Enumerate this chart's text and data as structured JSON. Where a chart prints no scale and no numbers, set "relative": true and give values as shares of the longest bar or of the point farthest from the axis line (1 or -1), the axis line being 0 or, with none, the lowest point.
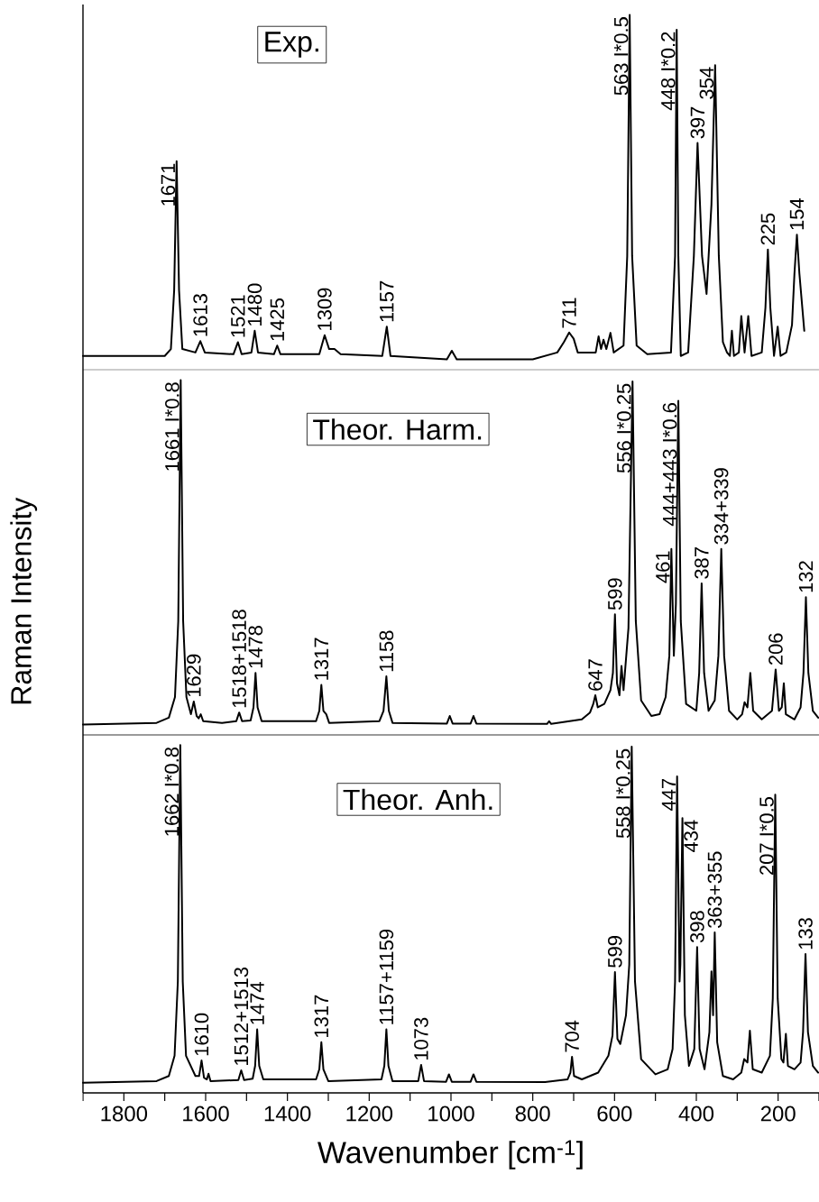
{
  "chart_data": [
    {
      "type": "line",
      "title": "Exp.",
      "relative": true,
      "xlim": [
        1900,
        100
      ],
      "tick_labels": false,
      "color": "#000000",
      "x": [
        1900,
        1700,
        1685,
        1677,
        1671,
        1665,
        1657,
        1625,
        1613,
        1602,
        1532,
        1521,
        1512,
        1488,
        1480,
        1472,
        1433,
        1425,
        1417,
        1322,
        1309,
        1298,
        1285,
        1270,
        1168,
        1157,
        1148,
        1010,
        998,
        986,
        800,
        740,
        724,
        711,
        700,
        690,
        646,
        639,
        633,
        627,
        620,
        610,
        602,
        578,
        569,
        563,
        557,
        546,
        520,
        462,
        452,
        448,
        444,
        438,
        420,
        406,
        397,
        386,
        375,
        363,
        354,
        345,
        335,
        325,
        318,
        313,
        308,
        296,
        290,
        282,
        273,
        265,
        240,
        231,
        225,
        219,
        210,
        201,
        194,
        180,
        166,
        160,
        154,
        148,
        136
      ],
      "values": [
        0.01,
        0.01,
        0.03,
        0.2,
        0.575,
        0.2,
        0.03,
        0.02,
        0.053,
        0.02,
        0.015,
        0.05,
        0.015,
        0.02,
        0.083,
        0.02,
        0.015,
        0.04,
        0.015,
        0.015,
        0.07,
        0.03,
        0.03,
        0.015,
        0.01,
        0.095,
        0.01,
        0.0,
        0.025,
        0.0,
        0.0,
        0.02,
        0.05,
        0.078,
        0.06,
        0.02,
        0.02,
        0.067,
        0.03,
        0.057,
        0.03,
        0.077,
        0.02,
        0.04,
        0.3,
        1.0,
        0.3,
        0.04,
        0.015,
        0.02,
        0.3,
        0.957,
        0.3,
        0.01,
        0.02,
        0.3,
        0.628,
        0.3,
        0.19,
        0.45,
        0.854,
        0.3,
        0.05,
        0.02,
        0.01,
        0.083,
        0.01,
        0.02,
        0.126,
        0.02,
        0.126,
        0.01,
        0.02,
        0.15,
        0.319,
        0.15,
        0.01,
        0.095,
        0.01,
        0.02,
        0.1,
        0.25,
        0.362,
        0.25,
        0.083
      ],
      "annotations": [
        {
          "text": "1671",
          "x": 1671,
          "y": 0.575
        },
        {
          "text": "1613",
          "x": 1613,
          "y": 0.053
        },
        {
          "text": "1521",
          "x": 1521,
          "y": 0.05
        },
        {
          "text": "1480",
          "x": 1480,
          "y": 0.083
        },
        {
          "text": "1425",
          "x": 1425,
          "y": 0.04
        },
        {
          "text": "1309",
          "x": 1309,
          "y": 0.07
        },
        {
          "text": "1157",
          "x": 1157,
          "y": 0.095
        },
        {
          "text": "711",
          "x": 711,
          "y": 0.078
        },
        {
          "text": "563 I*0.5",
          "x": 563,
          "y": 1.0
        },
        {
          "text": "448 I*0.2",
          "x": 448,
          "y": 0.957
        },
        {
          "text": "397",
          "x": 397,
          "y": 0.628
        },
        {
          "text": "354",
          "x": 354,
          "y": 0.854
        },
        {
          "text": "225",
          "x": 225,
          "y": 0.319
        },
        {
          "text": "154",
          "x": 154,
          "y": 0.362
        }
      ]
    },
    {
      "type": "line",
      "title": "Theor. Harm.",
      "relative": true,
      "xlim": [
        1900,
        100
      ],
      "tick_labels": false,
      "ylabel": "Raman Intensity",
      "color": "#000000",
      "x": [
        1900,
        1720,
        1690,
        1675,
        1667,
        1661,
        1655,
        1647,
        1636,
        1629,
        1622,
        1617,
        1612,
        1606,
        1560,
        1525,
        1518,
        1511,
        1490,
        1483,
        1478,
        1473,
        1463,
        1330,
        1322,
        1317,
        1312,
        1305,
        1298,
        1175,
        1165,
        1158,
        1152,
        1143,
        1010,
        1003,
        996,
        952,
        945,
        938,
        765,
        760,
        755,
        680,
        660,
        652,
        647,
        641,
        625,
        610,
        604,
        599,
        594,
        588,
        583,
        578,
        566,
        556,
        548,
        535,
        510,
        490,
        475,
        466,
        461,
        455,
        450,
        444,
        438,
        425,
        400,
        393,
        387,
        381,
        370,
        355,
        346,
        339,
        332,
        320,
        300,
        288,
        282,
        275,
        268,
        261,
        240,
        215,
        206,
        198,
        191,
        186,
        181,
        160,
        145,
        138,
        132,
        126,
        115,
        102
      ],
      "values": [
        0.0,
        0.005,
        0.02,
        0.08,
        0.3,
        1.0,
        0.3,
        0.08,
        0.03,
        0.067,
        0.025,
        0.018,
        0.03,
        0.01,
        0.005,
        0.01,
        0.035,
        0.01,
        0.012,
        0.05,
        0.15,
        0.05,
        0.01,
        0.01,
        0.04,
        0.115,
        0.04,
        0.03,
        0.005,
        0.01,
        0.04,
        0.14,
        0.04,
        0.005,
        0.003,
        0.025,
        0.003,
        0.003,
        0.025,
        0.003,
        0.002,
        0.01,
        0.002,
        0.015,
        0.035,
        0.06,
        0.085,
        0.05,
        0.06,
        0.1,
        0.15,
        0.32,
        0.12,
        0.085,
        0.17,
        0.1,
        0.28,
        0.996,
        0.3,
        0.07,
        0.025,
        0.03,
        0.08,
        0.2,
        0.51,
        0.2,
        0.35,
        0.94,
        0.3,
        0.06,
        0.04,
        0.15,
        0.41,
        0.15,
        0.04,
        0.07,
        0.2,
        0.51,
        0.2,
        0.04,
        0.015,
        0.03,
        0.065,
        0.05,
        0.15,
        0.04,
        0.015,
        0.04,
        0.16,
        0.04,
        0.05,
        0.12,
        0.03,
        0.015,
        0.05,
        0.15,
        0.37,
        0.15,
        0.04,
        0.02
      ],
      "annotations": [
        {
          "text": "1661 I*0.8",
          "x": 1661,
          "y": 1.0
        },
        {
          "text": "1629",
          "x": 1629,
          "y": 0.067
        },
        {
          "text": "1518+1518",
          "x": 1518,
          "y": 0.035
        },
        {
          "text": "1478",
          "x": 1478,
          "y": 0.15
        },
        {
          "text": "1317",
          "x": 1317,
          "y": 0.115
        },
        {
          "text": "1158",
          "x": 1158,
          "y": 0.14
        },
        {
          "text": "647",
          "x": 647,
          "y": 0.085
        },
        {
          "text": "599",
          "x": 599,
          "y": 0.32
        },
        {
          "text": "556 I*0.25",
          "x": 556,
          "y": 0.996
        },
        {
          "text": "444+443 I*0.6",
          "x": 444,
          "y": 0.94
        },
        {
          "text": "461",
          "x": 461,
          "y": 0.51
        },
        {
          "text": "387",
          "x": 387,
          "y": 0.41
        },
        {
          "text": "334+339",
          "x": 339,
          "y": 0.51
        },
        {
          "text": "206",
          "x": 206,
          "y": 0.16
        },
        {
          "text": "132",
          "x": 132,
          "y": 0.37
        }
      ]
    },
    {
      "type": "line",
      "title": "Theor. Anh.",
      "relative": true,
      "xlim": [
        1900,
        100
      ],
      "tick_labels": "x",
      "xlabel": "Wavenumber [cm$^{-1}$]",
      "color": "#000000",
      "xticks": [
        {
          "value": 1900,
          "label": null
        },
        1800,
        {
          "value": 1700,
          "label": null
        },
        1600,
        {
          "value": 1500,
          "label": null
        },
        1400,
        {
          "value": 1300,
          "label": null
        },
        1200,
        {
          "value": 1100,
          "label": null
        },
        1000,
        {
          "value": 900,
          "label": null
        },
        800,
        {
          "value": 700,
          "label": null
        },
        600,
        {
          "value": 500,
          "label": null
        },
        400,
        {
          "value": 300,
          "label": null
        },
        200,
        {
          "value": 100,
          "label": null
        }
      ],
      "x": [
        1900,
        1720,
        1690,
        1676,
        1668,
        1662,
        1656,
        1648,
        1625,
        1616,
        1610,
        1604,
        1597,
        1593,
        1588,
        1520,
        1513,
        1506,
        1485,
        1479,
        1474,
        1469,
        1459,
        1330,
        1322,
        1317,
        1312,
        1300,
        1170,
        1163,
        1158,
        1153,
        1143,
        1080,
        1073,
        1066,
        1012,
        1005,
        998,
        952,
        945,
        938,
        770,
        715,
        708,
        704,
        699,
        680,
        640,
        615,
        605,
        599,
        593,
        586,
        572,
        564,
        558,
        550,
        535,
        500,
        470,
        458,
        452,
        447,
        441,
        439,
        434,
        428,
        418,
        405,
        398,
        392,
        380,
        368,
        363,
        359,
        355,
        349,
        335,
        310,
        290,
        283,
        275,
        269,
        262,
        240,
        220,
        213,
        207,
        201,
        192,
        187,
        181,
        176,
        160,
        145,
        139,
        133,
        127,
        115,
        102
      ],
      "values": [
        0.0,
        0.005,
        0.02,
        0.08,
        0.3,
        1.0,
        0.3,
        0.08,
        0.02,
        0.02,
        0.066,
        0.015,
        0.01,
        0.027,
        0.005,
        0.008,
        0.037,
        0.008,
        0.012,
        0.05,
        0.158,
        0.05,
        0.01,
        0.01,
        0.04,
        0.12,
        0.04,
        0.005,
        0.01,
        0.05,
        0.158,
        0.05,
        0.005,
        0.005,
        0.053,
        0.005,
        0.003,
        0.025,
        0.003,
        0.003,
        0.025,
        0.003,
        0.002,
        0.01,
        0.03,
        0.077,
        0.02,
        0.01,
        0.03,
        0.08,
        0.14,
        0.328,
        0.13,
        0.115,
        0.2,
        0.35,
        0.995,
        0.3,
        0.07,
        0.025,
        0.04,
        0.1,
        0.3,
        0.907,
        0.3,
        0.35,
        0.784,
        0.2,
        0.05,
        0.1,
        0.402,
        0.1,
        0.04,
        0.15,
        0.33,
        0.2,
        0.445,
        0.12,
        0.02,
        0.01,
        0.03,
        0.07,
        0.06,
        0.154,
        0.04,
        0.03,
        0.08,
        0.25,
        0.853,
        0.25,
        0.07,
        0.06,
        0.145,
        0.05,
        0.04,
        0.06,
        0.15,
        0.381,
        0.15,
        0.05,
        0.03
      ],
      "annotations": [
        {
          "text": "1662 I*0.8",
          "x": 1662,
          "y": 1.0
        },
        {
          "text": "1610",
          "x": 1610,
          "y": 0.066
        },
        {
          "text": "1512+1513",
          "x": 1513,
          "y": 0.037
        },
        {
          "text": "1474",
          "x": 1474,
          "y": 0.158
        },
        {
          "text": "1317",
          "x": 1317,
          "y": 0.12
        },
        {
          "text": "1157+1159",
          "x": 1158,
          "y": 0.158
        },
        {
          "text": "1073",
          "x": 1073,
          "y": 0.053
        },
        {
          "text": "704",
          "x": 704,
          "y": 0.077
        },
        {
          "text": "599",
          "x": 599,
          "y": 0.328
        },
        {
          "text": "558 I*0.25",
          "x": 558,
          "y": 0.995
        },
        {
          "text": "447",
          "x": 447,
          "y": 0.907
        },
        {
          "text": "434",
          "x": 434,
          "y": 0.784
        },
        {
          "text": "398",
          "x": 398,
          "y": 0.402
        },
        {
          "text": "363+355",
          "x": 355,
          "y": 0.445
        },
        {
          "text": "207 I*0.5",
          "x": 207,
          "y": 0.853
        },
        {
          "text": "133",
          "x": 133,
          "y": 0.381
        }
      ]
    }
  ]
}
